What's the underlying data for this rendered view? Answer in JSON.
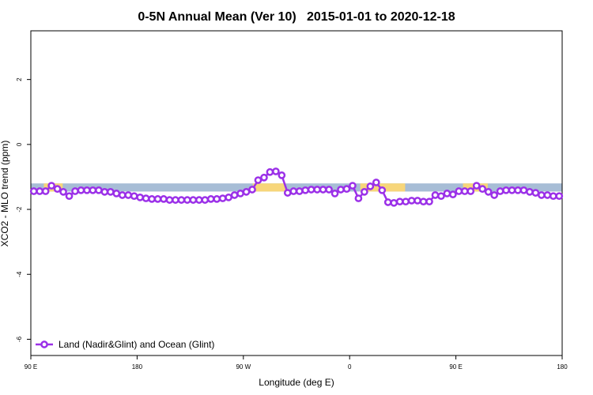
{
  "chart_data": {
    "type": "line",
    "title": "0-5N Annual Mean (Ver 10)   2015-01-01 to 2020-12-18",
    "x_label": "Longitude (deg E)",
    "y_label": "XCO2 - MLO trend (ppm)",
    "xlim": [
      90,
      540
    ],
    "xticks": [
      {
        "value": 90,
        "label": "90 E"
      },
      {
        "value": 180,
        "label": "180"
      },
      {
        "value": 270,
        "label": "90 W"
      },
      {
        "value": 360,
        "label": "0"
      },
      {
        "value": 450,
        "label": "90 E"
      },
      {
        "value": 540,
        "label": "180"
      }
    ],
    "ylim": [
      -6.5,
      3.5
    ],
    "yticks": [
      -6,
      -4,
      -2,
      0,
      2
    ],
    "reference_band": {
      "lower": -1.45,
      "upper": -1.2,
      "color": "#a7bdd6"
    },
    "highlight_ranges": [
      [
        101,
        117
      ],
      [
        278,
        306
      ],
      [
        369,
        407
      ],
      [
        456,
        477
      ]
    ],
    "highlight_color": "#f7d67a",
    "legend": "bottom-left",
    "x": [
      92.5,
      97.5,
      102.5,
      107.5,
      112.5,
      117.5,
      122.5,
      127.5,
      132.5,
      137.5,
      142.5,
      147.5,
      152.5,
      157.5,
      162.5,
      167.5,
      172.5,
      177.5,
      182.5,
      187.5,
      192.5,
      197.5,
      202.5,
      207.5,
      212.5,
      217.5,
      222.5,
      227.5,
      232.5,
      237.5,
      242.5,
      247.5,
      252.5,
      257.5,
      262.5,
      267.5,
      272.5,
      277.5,
      282.5,
      287.5,
      292.5,
      297.5,
      302.5,
      307.5,
      312.5,
      317.5,
      322.5,
      327.5,
      332.5,
      337.5,
      342.5,
      347.5,
      352.5,
      357.5,
      362.5,
      367.5,
      372.5,
      377.5,
      382.5,
      387.5,
      392.5,
      397.5,
      402.5,
      407.5,
      412.5,
      417.5,
      422.5,
      427.5,
      432.5,
      437.5,
      442.5,
      447.5,
      452.5,
      457.5,
      462.5,
      467.5,
      472.5,
      477.5,
      482.5,
      487.5,
      492.5,
      497.5,
      502.5,
      507.5,
      512.5,
      517.5,
      522.5,
      527.5,
      532.5,
      537.5
    ],
    "series": [
      {
        "name": "Land (Nadir&Glint) and Ocean (Glint)",
        "color": "#9b30e8",
        "values": [
          -1.44,
          -1.44,
          -1.44,
          -1.27,
          -1.37,
          -1.46,
          -1.59,
          -1.44,
          -1.41,
          -1.41,
          -1.41,
          -1.41,
          -1.46,
          -1.46,
          -1.51,
          -1.56,
          -1.56,
          -1.59,
          -1.63,
          -1.66,
          -1.68,
          -1.68,
          -1.68,
          -1.71,
          -1.71,
          -1.71,
          -1.71,
          -1.71,
          -1.71,
          -1.71,
          -1.68,
          -1.68,
          -1.66,
          -1.63,
          -1.56,
          -1.51,
          -1.46,
          -1.39,
          -1.1,
          -1.02,
          -0.85,
          -0.83,
          -0.95,
          -1.49,
          -1.44,
          -1.44,
          -1.41,
          -1.39,
          -1.39,
          -1.39,
          -1.39,
          -1.51,
          -1.39,
          -1.37,
          -1.27,
          -1.66,
          -1.46,
          -1.29,
          -1.17,
          -1.41,
          -1.78,
          -1.8,
          -1.76,
          -1.76,
          -1.73,
          -1.73,
          -1.76,
          -1.76,
          -1.56,
          -1.59,
          -1.51,
          -1.54,
          -1.44,
          -1.44,
          -1.44,
          -1.27,
          -1.37,
          -1.46,
          -1.56,
          -1.44,
          -1.41,
          -1.41,
          -1.41,
          -1.41,
          -1.46,
          -1.49,
          -1.56,
          -1.56,
          -1.59,
          -1.59
        ]
      }
    ]
  }
}
